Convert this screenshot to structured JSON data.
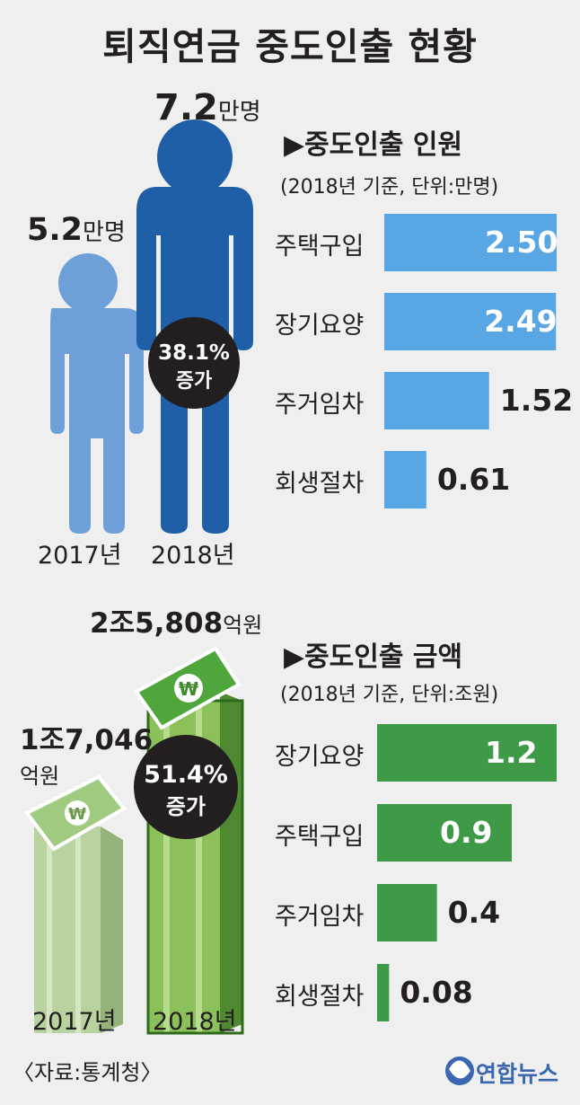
{
  "title": "퇴직연금 중도인출 현황",
  "people": {
    "y2017": {
      "value": "5.2",
      "unit": "만명",
      "year": "2017년"
    },
    "y2018": {
      "value": "7.2",
      "unit": "만명",
      "year": "2018년"
    },
    "increase": {
      "pct": "38.1%",
      "label": "증가"
    }
  },
  "money": {
    "y2017": {
      "value": "1조7,046",
      "unit": "억원",
      "year": "2017년"
    },
    "y2018": {
      "value": "2조5,808",
      "unit": "억원",
      "year": "2018년"
    },
    "increase": {
      "pct": "51.4%",
      "label": "증가"
    },
    "won_symbol": "₩"
  },
  "colors": {
    "blue_dark": "#1f5fa8",
    "blue_light": "#6f9fd8",
    "bar_blue": "#58a6e3",
    "bar_green": "#3f9a48",
    "circle": "#231f20"
  },
  "chart_data": [
    {
      "type": "bar",
      "orientation": "horizontal",
      "title": "▶중도인출 인원",
      "subtitle": "(2018년 기준, 단위:만명)",
      "categories": [
        "주택구입",
        "장기요양",
        "주거임차",
        "회생절차"
      ],
      "values": [
        2.5,
        2.49,
        1.52,
        0.61
      ],
      "value_labels": [
        "2.50",
        "2.49",
        "1.52",
        "0.61"
      ],
      "color": "#58a6e3",
      "xlim": [
        0,
        2.5
      ]
    },
    {
      "type": "bar",
      "orientation": "horizontal",
      "title": "▶중도인출 금액",
      "subtitle": "(2018년 기준, 단위:조원)",
      "categories": [
        "장기요양",
        "주택구입",
        "주거임차",
        "회생절차"
      ],
      "values": [
        1.2,
        0.9,
        0.4,
        0.08
      ],
      "value_labels": [
        "1.2",
        "0.9",
        "0.4",
        "0.08"
      ],
      "color": "#3f9a48",
      "xlim": [
        0,
        1.2
      ]
    }
  ],
  "source": "〈자료:통계청〉",
  "logo": "연합뉴스"
}
